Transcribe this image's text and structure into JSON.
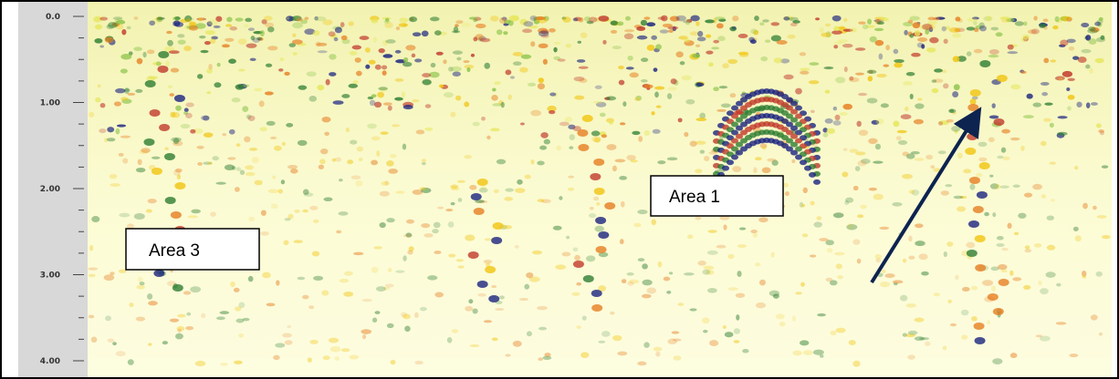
{
  "depth_axis": {
    "ticks": [
      "0.0",
      "1.00",
      "2.00",
      "3.00",
      "4.00"
    ]
  },
  "annotations": {
    "area_1": "Area 1",
    "area_3": "Area 3"
  }
}
